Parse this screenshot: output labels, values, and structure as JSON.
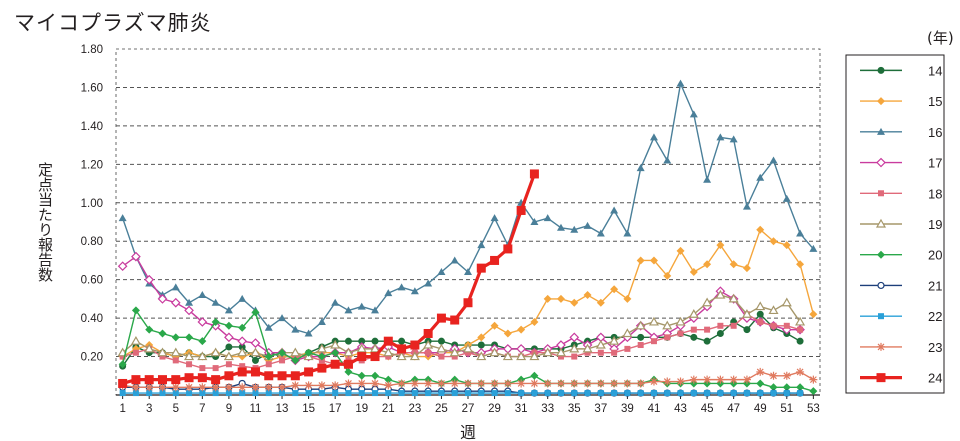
{
  "header": {
    "title": "マイコプラズマ肺炎",
    "unit": "(年)"
  },
  "chart_data": {
    "type": "line",
    "ylabel": "定点当たり報告数",
    "xlabel": "週",
    "ylim": [
      0,
      1.8
    ],
    "y_ticks": [
      "1.80",
      "1.60",
      "1.40",
      "1.20",
      "1.00",
      "0.80",
      "0.60",
      "0.40",
      "0.20"
    ],
    "x_ticks": [
      1,
      3,
      5,
      7,
      9,
      11,
      13,
      15,
      17,
      19,
      21,
      23,
      25,
      27,
      29,
      31,
      33,
      35,
      37,
      39,
      41,
      43,
      45,
      47,
      49,
      51,
      53
    ],
    "grid": "horizontal-dashed",
    "legend": "right",
    "series": [
      {
        "name": "14",
        "color": "#1e6e3a",
        "marker": "circle",
        "values": [
          0.15,
          0.25,
          0.22,
          0.22,
          0.2,
          0.22,
          0.2,
          0.2,
          0.25,
          0.25,
          0.18,
          0.22,
          0.2,
          0.2,
          0.22,
          0.25,
          0.28,
          0.28,
          0.28,
          0.28,
          0.28,
          0.28,
          0.26,
          0.28,
          0.28,
          0.26,
          0.26,
          0.26,
          0.26,
          0.24,
          0.24,
          0.24,
          0.24,
          0.24,
          0.26,
          0.28,
          0.3,
          0.3,
          0.3,
          0.3,
          0.3,
          0.3,
          0.32,
          0.3,
          0.28,
          0.32,
          0.38,
          0.34,
          0.42,
          0.35,
          0.32,
          0.28
        ]
      },
      {
        "name": "15",
        "color": "#f5a63c",
        "marker": "diamond",
        "values": [
          0.2,
          0.24,
          0.26,
          0.22,
          0.2,
          0.22,
          0.2,
          0.22,
          0.2,
          0.2,
          0.22,
          0.18,
          0.2,
          0.2,
          0.22,
          0.22,
          0.22,
          0.2,
          0.22,
          0.22,
          0.2,
          0.22,
          0.2,
          0.2,
          0.22,
          0.22,
          0.26,
          0.3,
          0.36,
          0.32,
          0.34,
          0.38,
          0.5,
          0.5,
          0.48,
          0.52,
          0.48,
          0.55,
          0.5,
          0.7,
          0.7,
          0.62,
          0.75,
          0.64,
          0.68,
          0.78,
          0.68,
          0.66,
          0.86,
          0.8,
          0.78,
          0.68,
          0.42
        ]
      },
      {
        "name": "16",
        "color": "#4a7f99",
        "marker": "triangle",
        "values": [
          0.92,
          0.72,
          0.58,
          0.52,
          0.56,
          0.48,
          0.52,
          0.48,
          0.44,
          0.5,
          0.44,
          0.35,
          0.4,
          0.34,
          0.32,
          0.38,
          0.48,
          0.44,
          0.46,
          0.44,
          0.53,
          0.56,
          0.54,
          0.58,
          0.64,
          0.7,
          0.64,
          0.78,
          0.92,
          0.78,
          1.0,
          0.9,
          0.92,
          0.87,
          0.86,
          0.88,
          0.84,
          0.96,
          0.84,
          1.18,
          1.34,
          1.22,
          1.62,
          1.46,
          1.12,
          1.34,
          1.33,
          0.98,
          1.13,
          1.22,
          1.02,
          0.84,
          0.76
        ]
      },
      {
        "name": "17",
        "color": "#c93b9e",
        "marker": "diamond-open",
        "values": [
          0.67,
          0.72,
          0.6,
          0.5,
          0.48,
          0.44,
          0.38,
          0.36,
          0.3,
          0.28,
          0.27,
          0.22,
          0.22,
          0.18,
          0.2,
          0.2,
          0.22,
          0.22,
          0.25,
          0.24,
          0.25,
          0.22,
          0.22,
          0.22,
          0.22,
          0.24,
          0.22,
          0.22,
          0.24,
          0.24,
          0.24,
          0.22,
          0.24,
          0.26,
          0.3,
          0.26,
          0.3,
          0.24,
          0.3,
          0.36,
          0.3,
          0.32,
          0.36,
          0.4,
          0.46,
          0.54,
          0.5,
          0.4,
          0.38,
          0.36,
          0.34,
          0.34
        ]
      },
      {
        "name": "18",
        "color": "#e06a7a",
        "marker": "square",
        "values": [
          0.2,
          0.22,
          0.24,
          0.2,
          0.18,
          0.16,
          0.14,
          0.14,
          0.16,
          0.15,
          0.14,
          0.16,
          0.18,
          0.2,
          0.2,
          0.18,
          0.16,
          0.18,
          0.18,
          0.2,
          0.2,
          0.22,
          0.22,
          0.22,
          0.2,
          0.2,
          0.22,
          0.2,
          0.22,
          0.2,
          0.2,
          0.22,
          0.22,
          0.2,
          0.2,
          0.22,
          0.22,
          0.22,
          0.24,
          0.26,
          0.28,
          0.3,
          0.32,
          0.34,
          0.34,
          0.36,
          0.36,
          0.42,
          0.38,
          0.36,
          0.36,
          0.34
        ]
      },
      {
        "name": "19",
        "color": "#a6976a",
        "marker": "triangle-open",
        "values": [
          0.22,
          0.28,
          0.24,
          0.22,
          0.22,
          0.2,
          0.2,
          0.22,
          0.2,
          0.22,
          0.22,
          0.2,
          0.22,
          0.22,
          0.2,
          0.24,
          0.26,
          0.22,
          0.24,
          0.24,
          0.22,
          0.2,
          0.2,
          0.26,
          0.24,
          0.22,
          0.24,
          0.2,
          0.22,
          0.2,
          0.2,
          0.2,
          0.22,
          0.22,
          0.24,
          0.24,
          0.26,
          0.28,
          0.32,
          0.36,
          0.38,
          0.36,
          0.38,
          0.42,
          0.48,
          0.52,
          0.5,
          0.42,
          0.46,
          0.44,
          0.48,
          0.38
        ]
      },
      {
        "name": "20",
        "color": "#2aa84a",
        "marker": "diamond",
        "values": [
          0.16,
          0.44,
          0.34,
          0.32,
          0.3,
          0.3,
          0.28,
          0.38,
          0.36,
          0.35,
          0.43,
          0.2,
          0.22,
          0.18,
          0.22,
          0.2,
          0.22,
          0.12,
          0.1,
          0.1,
          0.08,
          0.06,
          0.08,
          0.08,
          0.06,
          0.08,
          0.06,
          0.06,
          0.06,
          0.06,
          0.08,
          0.1,
          0.06,
          0.06,
          0.06,
          0.06,
          0.06,
          0.06,
          0.06,
          0.06,
          0.08,
          0.06,
          0.06,
          0.06,
          0.06,
          0.06,
          0.06,
          0.06,
          0.06,
          0.04,
          0.04,
          0.04,
          0.02
        ]
      },
      {
        "name": "21",
        "color": "#1d3f7a",
        "marker": "circle-open",
        "values": [
          0.04,
          0.04,
          0.04,
          0.04,
          0.03,
          0.03,
          0.03,
          0.04,
          0.04,
          0.06,
          0.04,
          0.04,
          0.04,
          0.03,
          0.03,
          0.03,
          0.04,
          0.03,
          0.03,
          0.03,
          0.03,
          0.02,
          0.02,
          0.02,
          0.02,
          0.02,
          0.02,
          0.02,
          0.02,
          0.02,
          0.01,
          0.01,
          0.01,
          0.01,
          0.01,
          0.01,
          0.01,
          0.01,
          0.01,
          0.01,
          0.01,
          0.01,
          0.01,
          0.01,
          0.01,
          0.01,
          0.01,
          0.01,
          0.01,
          0.01,
          0.01,
          0.01
        ]
      },
      {
        "name": "22",
        "color": "#2aa0d8",
        "marker": "square",
        "values": [
          0.01,
          0.01,
          0.01,
          0.01,
          0.01,
          0.01,
          0.01,
          0.01,
          0.01,
          0.01,
          0.01,
          0.01,
          0.01,
          0.01,
          0.01,
          0.01,
          0.01,
          0.01,
          0.01,
          0.01,
          0.01,
          0.01,
          0.01,
          0.01,
          0.01,
          0.01,
          0.01,
          0.01,
          0.01,
          0.01,
          0.01,
          0.01,
          0.01,
          0.01,
          0.01,
          0.01,
          0.01,
          0.01,
          0.01,
          0.01,
          0.01,
          0.01,
          0.01,
          0.01,
          0.01,
          0.01,
          0.01,
          0.01,
          0.01,
          0.01,
          0.01,
          0.01
        ]
      },
      {
        "name": "23",
        "color": "#e07a5f",
        "marker": "star",
        "values": [
          0.05,
          0.04,
          0.04,
          0.04,
          0.04,
          0.04,
          0.04,
          0.04,
          0.04,
          0.04,
          0.04,
          0.04,
          0.04,
          0.05,
          0.05,
          0.05,
          0.05,
          0.06,
          0.06,
          0.06,
          0.05,
          0.06,
          0.06,
          0.06,
          0.06,
          0.06,
          0.06,
          0.06,
          0.06,
          0.06,
          0.06,
          0.06,
          0.06,
          0.06,
          0.06,
          0.06,
          0.06,
          0.06,
          0.06,
          0.06,
          0.07,
          0.07,
          0.07,
          0.08,
          0.08,
          0.08,
          0.08,
          0.08,
          0.12,
          0.1,
          0.1,
          0.12,
          0.08
        ]
      },
      {
        "name": "24",
        "color": "#e8231f",
        "marker": "square-bold",
        "values": [
          0.06,
          0.08,
          0.08,
          0.08,
          0.08,
          0.09,
          0.09,
          0.08,
          0.1,
          0.12,
          0.12,
          0.1,
          0.1,
          0.1,
          0.12,
          0.14,
          0.16,
          0.16,
          0.2,
          0.2,
          0.28,
          0.24,
          0.26,
          0.32,
          0.4,
          0.39,
          0.48,
          0.66,
          0.7,
          0.76,
          0.96,
          1.15
        ]
      }
    ]
  }
}
